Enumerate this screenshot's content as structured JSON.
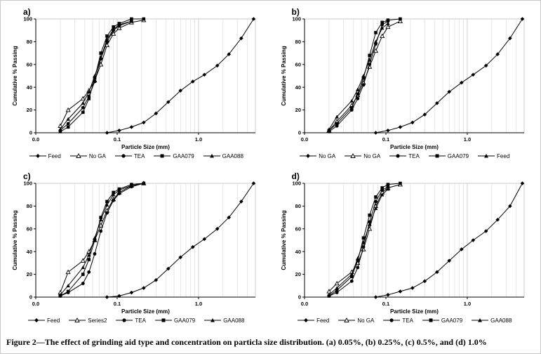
{
  "figure": {
    "caption": "Figure 2—The effect of grinding aid type and concentration on particla size distribution. (a) 0.05%, (b) 0.25%, (c) 0.5%, and (d) 1.0%"
  },
  "colors": {
    "line": "#000000",
    "grid_minor": "#dcdcdc",
    "grid_major": "#c6c6c6",
    "plot_border": "#bfbfbf"
  },
  "chart_data": [
    {
      "type": "line",
      "panel": "a)",
      "xlabel": "Particle Size (mm)",
      "ylabel": "Cumulative % Passing",
      "xscale": "log",
      "xlim": [
        0.01,
        5
      ],
      "ylim": [
        0,
        100
      ],
      "xticks": [
        {
          "v": 0.01,
          "label": "0.0"
        },
        {
          "v": 0.1,
          "label": "0.1"
        },
        {
          "v": 1,
          "label": "1.0"
        }
      ],
      "yticks": [
        0,
        20,
        40,
        60,
        80,
        100
      ],
      "grid": "vertical-log",
      "legend_position": "bottom",
      "series": [
        {
          "name": "Feed",
          "marker": "diamond",
          "points": [
            [
              0.075,
              0
            ],
            [
              0.106,
              2
            ],
            [
              0.15,
              5
            ],
            [
              0.212,
              9
            ],
            [
              0.3,
              17
            ],
            [
              0.425,
              27
            ],
            [
              0.6,
              37
            ],
            [
              0.85,
              45
            ],
            [
              1.18,
              51
            ],
            [
              1.7,
              59
            ],
            [
              2.36,
              69
            ],
            [
              3.35,
              83
            ],
            [
              4.75,
              100
            ]
          ]
        },
        {
          "name": "No GA",
          "marker": "triangle-open",
          "points": [
            [
              0.02,
              6
            ],
            [
              0.025,
              20
            ],
            [
              0.038,
              30
            ],
            [
              0.045,
              37
            ],
            [
              0.053,
              46
            ],
            [
              0.063,
              60
            ],
            [
              0.075,
              77
            ],
            [
              0.09,
              87
            ],
            [
              0.106,
              92
            ],
            [
              0.15,
              97
            ],
            [
              0.212,
              99
            ]
          ]
        },
        {
          "name": "TEA",
          "marker": "circle",
          "points": [
            [
              0.02,
              2
            ],
            [
              0.025,
              8
            ],
            [
              0.038,
              22
            ],
            [
              0.045,
              32
            ],
            [
              0.053,
              45
            ],
            [
              0.063,
              65
            ],
            [
              0.075,
              80
            ],
            [
              0.09,
              90
            ],
            [
              0.106,
              94
            ],
            [
              0.15,
              98
            ]
          ]
        },
        {
          "name": "GAA079",
          "marker": "square",
          "points": [
            [
              0.02,
              1
            ],
            [
              0.025,
              5
            ],
            [
              0.038,
              18
            ],
            [
              0.045,
              30
            ],
            [
              0.053,
              48
            ],
            [
              0.063,
              70
            ],
            [
              0.075,
              85
            ],
            [
              0.09,
              93
            ],
            [
              0.106,
              96
            ],
            [
              0.15,
              100
            ],
            [
              0.212,
              100
            ]
          ]
        },
        {
          "name": "GAA088",
          "marker": "triangle",
          "points": [
            [
              0.02,
              3
            ],
            [
              0.025,
              12
            ],
            [
              0.038,
              26
            ],
            [
              0.045,
              36
            ],
            [
              0.053,
              50
            ],
            [
              0.063,
              66
            ],
            [
              0.075,
              82
            ],
            [
              0.09,
              91
            ],
            [
              0.106,
              95
            ],
            [
              0.15,
              98
            ]
          ]
        }
      ]
    },
    {
      "type": "line",
      "panel": "b)",
      "xlabel": "Particle Size (mm)",
      "ylabel": "Cumulative % Passing",
      "xscale": "log",
      "xlim": [
        0.01,
        5
      ],
      "ylim": [
        0,
        100
      ],
      "xticks": [
        {
          "v": 0.01,
          "label": "0.0"
        },
        {
          "v": 0.1,
          "label": "0.1"
        },
        {
          "v": 1,
          "label": "1.0"
        }
      ],
      "yticks": [
        0,
        20,
        40,
        60,
        80,
        100
      ],
      "grid": "vertical-log",
      "legend_position": "bottom",
      "series": [
        {
          "name": "No GA",
          "marker": "diamond",
          "points": [
            [
              0.075,
              0
            ],
            [
              0.106,
              2
            ],
            [
              0.15,
              5
            ],
            [
              0.212,
              9
            ],
            [
              0.3,
              16
            ],
            [
              0.425,
              26
            ],
            [
              0.6,
              36
            ],
            [
              0.85,
              44
            ],
            [
              1.18,
              51
            ],
            [
              1.7,
              59
            ],
            [
              2.36,
              69
            ],
            [
              3.35,
              83
            ],
            [
              4.75,
              100
            ]
          ]
        },
        {
          "name": "No GA",
          "marker": "triangle-open",
          "points": [
            [
              0.02,
              2
            ],
            [
              0.025,
              10
            ],
            [
              0.038,
              24
            ],
            [
              0.045,
              33
            ],
            [
              0.053,
              44
            ],
            [
              0.063,
              58
            ],
            [
              0.075,
              72
            ],
            [
              0.09,
              85
            ],
            [
              0.106,
              93
            ],
            [
              0.15,
              98
            ]
          ]
        },
        {
          "name": "TEA",
          "marker": "circle",
          "points": [
            [
              0.02,
              1
            ],
            [
              0.025,
              6
            ],
            [
              0.038,
              20
            ],
            [
              0.045,
              30
            ],
            [
              0.053,
              42
            ],
            [
              0.063,
              60
            ],
            [
              0.075,
              78
            ],
            [
              0.09,
              95
            ],
            [
              0.106,
              98
            ]
          ]
        },
        {
          "name": "GAA079",
          "marker": "square",
          "points": [
            [
              0.02,
              2
            ],
            [
              0.025,
              8
            ],
            [
              0.038,
              22
            ],
            [
              0.045,
              34
            ],
            [
              0.053,
              48
            ],
            [
              0.063,
              68
            ],
            [
              0.075,
              88
            ],
            [
              0.09,
              97
            ],
            [
              0.106,
              99
            ],
            [
              0.15,
              100
            ]
          ]
        },
        {
          "name": "Feed",
          "marker": "triangle",
          "points": [
            [
              0.02,
              3
            ],
            [
              0.025,
              14
            ],
            [
              0.038,
              28
            ],
            [
              0.045,
              38
            ],
            [
              0.053,
              50
            ],
            [
              0.063,
              64
            ],
            [
              0.075,
              80
            ],
            [
              0.09,
              92
            ],
            [
              0.106,
              96
            ]
          ]
        }
      ]
    },
    {
      "type": "line",
      "panel": "c)",
      "xlabel": "Particle Size (mm)",
      "ylabel": "Cumulative % Passing",
      "xscale": "log",
      "xlim": [
        0.01,
        5
      ],
      "ylim": [
        0,
        100
      ],
      "xticks": [
        {
          "v": 0.01,
          "label": "0.0"
        },
        {
          "v": 0.1,
          "label": "0.1"
        },
        {
          "v": 1,
          "label": "1.0"
        }
      ],
      "yticks": [
        0,
        20,
        40,
        60,
        80,
        100
      ],
      "grid": "vertical-log",
      "legend_position": "bottom",
      "series": [
        {
          "name": "Feed",
          "marker": "diamond",
          "points": [
            [
              0.075,
              0
            ],
            [
              0.106,
              1
            ],
            [
              0.15,
              4
            ],
            [
              0.212,
              8
            ],
            [
              0.3,
              15
            ],
            [
              0.425,
              25
            ],
            [
              0.6,
              35
            ],
            [
              0.85,
              44
            ],
            [
              1.18,
              51
            ],
            [
              1.7,
              60
            ],
            [
              2.36,
              70
            ],
            [
              3.35,
              84
            ],
            [
              4.75,
              100
            ]
          ]
        },
        {
          "name": "Series2",
          "marker": "triangle-open",
          "points": [
            [
              0.02,
              4
            ],
            [
              0.025,
              22
            ],
            [
              0.038,
              32
            ],
            [
              0.045,
              40
            ],
            [
              0.053,
              50
            ],
            [
              0.063,
              63
            ],
            [
              0.075,
              76
            ],
            [
              0.09,
              86
            ],
            [
              0.106,
              92
            ],
            [
              0.15,
              98
            ],
            [
              0.212,
              100
            ]
          ]
        },
        {
          "name": "TEA",
          "marker": "circle",
          "points": [
            [
              0.02,
              1
            ],
            [
              0.025,
              4
            ],
            [
              0.038,
              12
            ],
            [
              0.045,
              22
            ],
            [
              0.053,
              38
            ],
            [
              0.063,
              58
            ],
            [
              0.075,
              74
            ],
            [
              0.09,
              85
            ],
            [
              0.106,
              91
            ],
            [
              0.15,
              97
            ],
            [
              0.212,
              100
            ]
          ]
        },
        {
          "name": "GAA079",
          "marker": "square",
          "points": [
            [
              0.02,
              1
            ],
            [
              0.025,
              5
            ],
            [
              0.038,
              20
            ],
            [
              0.045,
              33
            ],
            [
              0.053,
              50
            ],
            [
              0.063,
              70
            ],
            [
              0.075,
              84
            ],
            [
              0.09,
              92
            ],
            [
              0.106,
              95
            ],
            [
              0.15,
              99
            ],
            [
              0.212,
              100
            ]
          ]
        },
        {
          "name": "GAA088",
          "marker": "triangle",
          "points": [
            [
              0.02,
              2
            ],
            [
              0.025,
              10
            ],
            [
              0.038,
              26
            ],
            [
              0.045,
              37
            ],
            [
              0.053,
              52
            ],
            [
              0.063,
              68
            ],
            [
              0.075,
              81
            ],
            [
              0.09,
              90
            ],
            [
              0.106,
              94
            ],
            [
              0.15,
              98
            ]
          ]
        }
      ]
    },
    {
      "type": "line",
      "panel": "d)",
      "xlabel": "Particle Size (mm)",
      "ylabel": "Cumulative % Passing",
      "xscale": "log",
      "xlim": [
        0.01,
        5
      ],
      "ylim": [
        0,
        100
      ],
      "xticks": [
        {
          "v": 0.01,
          "label": "0.0"
        },
        {
          "v": 0.1,
          "label": "0.1"
        },
        {
          "v": 1,
          "label": "1.0"
        }
      ],
      "yticks": [
        0,
        20,
        40,
        60,
        80,
        100
      ],
      "grid": "vertical-log",
      "legend_position": "bottom",
      "series": [
        {
          "name": "Feed",
          "marker": "diamond",
          "points": [
            [
              0.075,
              0
            ],
            [
              0.106,
              2
            ],
            [
              0.15,
              5
            ],
            [
              0.212,
              8
            ],
            [
              0.3,
              14
            ],
            [
              0.425,
              22
            ],
            [
              0.6,
              32
            ],
            [
              0.85,
              42
            ],
            [
              1.18,
              50
            ],
            [
              1.7,
              58
            ],
            [
              2.36,
              68
            ],
            [
              3.35,
              80
            ],
            [
              4.75,
              100
            ]
          ]
        },
        {
          "name": "No GA",
          "marker": "triangle-open",
          "points": [
            [
              0.02,
              5
            ],
            [
              0.025,
              12
            ],
            [
              0.038,
              22
            ],
            [
              0.045,
              30
            ],
            [
              0.053,
              42
            ],
            [
              0.063,
              60
            ],
            [
              0.075,
              80
            ],
            [
              0.09,
              92
            ],
            [
              0.106,
              96
            ],
            [
              0.15,
              99
            ]
          ]
        },
        {
          "name": "TEA",
          "marker": "circle",
          "points": [
            [
              0.02,
              1
            ],
            [
              0.025,
              4
            ],
            [
              0.038,
              14
            ],
            [
              0.045,
              26
            ],
            [
              0.053,
              44
            ],
            [
              0.063,
              66
            ],
            [
              0.075,
              84
            ],
            [
              0.09,
              94
            ],
            [
              0.106,
              97
            ]
          ]
        },
        {
          "name": "GAA079",
          "marker": "square",
          "points": [
            [
              0.02,
              1
            ],
            [
              0.025,
              6
            ],
            [
              0.038,
              18
            ],
            [
              0.045,
              32
            ],
            [
              0.053,
              52
            ],
            [
              0.063,
              72
            ],
            [
              0.075,
              88
            ],
            [
              0.09,
              96
            ],
            [
              0.106,
              99
            ],
            [
              0.15,
              100
            ]
          ]
        },
        {
          "name": "GAA088",
          "marker": "triangle",
          "points": [
            [
              0.02,
              2
            ],
            [
              0.025,
              8
            ],
            [
              0.038,
              20
            ],
            [
              0.045,
              34
            ],
            [
              0.053,
              48
            ],
            [
              0.063,
              64
            ],
            [
              0.075,
              78
            ],
            [
              0.09,
              90
            ],
            [
              0.106,
              95
            ]
          ]
        }
      ]
    }
  ]
}
